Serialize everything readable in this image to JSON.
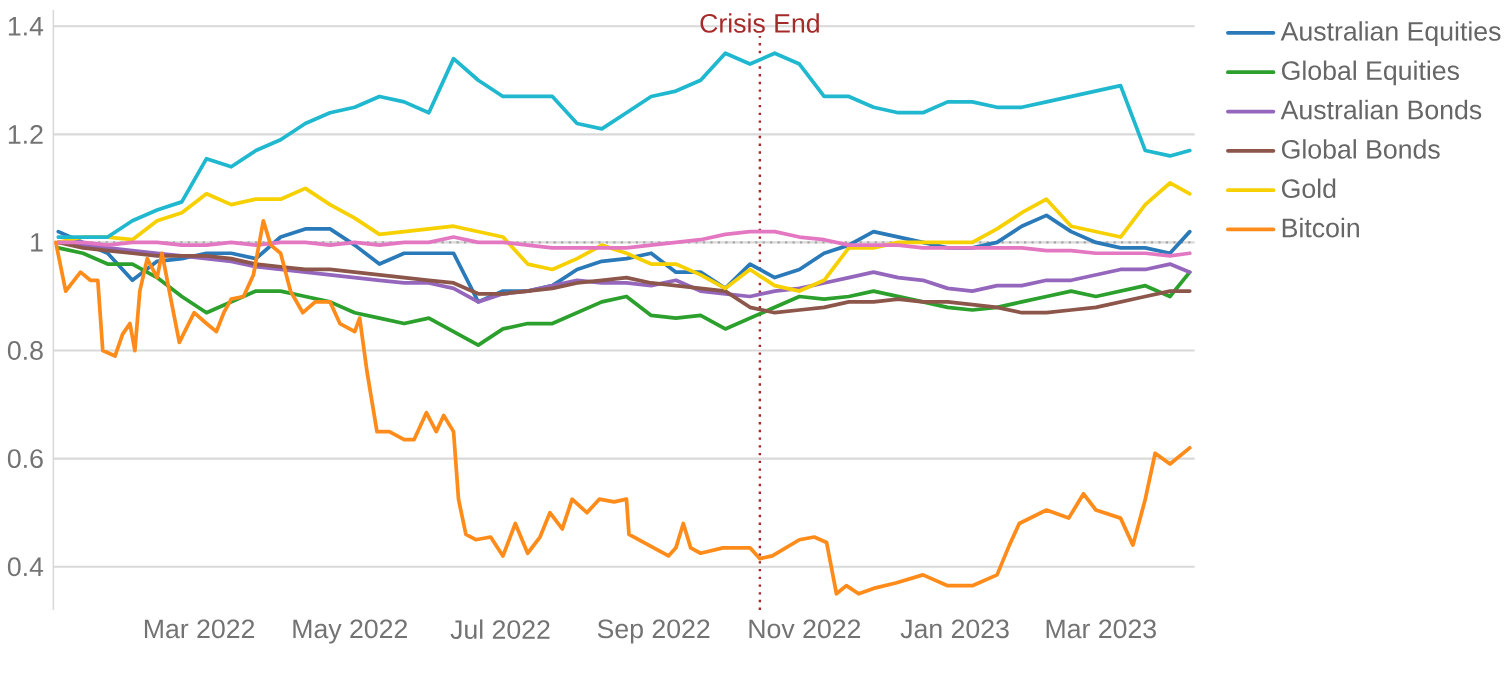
{
  "chart_data": {
    "type": "line",
    "x": [
      "2022-01-03",
      "2022-01-13",
      "2022-01-23",
      "2022-02-02",
      "2022-02-12",
      "2022-02-22",
      "2022-03-04",
      "2022-03-14",
      "2022-03-24",
      "2022-04-03",
      "2022-04-13",
      "2022-04-23",
      "2022-05-03",
      "2022-05-13",
      "2022-05-23",
      "2022-06-02",
      "2022-06-12",
      "2022-06-22",
      "2022-07-02",
      "2022-07-12",
      "2022-07-22",
      "2022-08-01",
      "2022-08-11",
      "2022-08-21",
      "2022-08-31",
      "2022-09-10",
      "2022-09-20",
      "2022-09-30",
      "2022-10-10",
      "2022-10-20",
      "2022-10-30",
      "2022-11-09",
      "2022-11-19",
      "2022-11-29",
      "2022-12-09",
      "2022-12-19",
      "2022-12-29",
      "2023-01-08",
      "2023-01-18",
      "2023-01-28",
      "2023-02-07",
      "2023-02-17",
      "2023-02-27",
      "2023-03-09",
      "2023-03-19",
      "2023-03-29",
      "2023-04-06"
    ],
    "series": [
      {
        "name": "Australian Equities",
        "color": "#2a7ab9",
        "values": [
          1.02,
          1.0,
          0.98,
          0.93,
          0.965,
          0.97,
          0.98,
          0.98,
          0.97,
          1.01,
          1.025,
          1.025,
          0.995,
          0.96,
          0.98,
          0.98,
          0.98,
          0.89,
          0.91,
          0.91,
          0.92,
          0.95,
          0.965,
          0.97,
          0.98,
          0.945,
          0.945,
          0.915,
          0.96,
          0.935,
          0.95,
          0.98,
          0.995,
          1.02,
          1.01,
          1.0,
          0.99,
          0.99,
          1.0,
          1.03,
          1.05,
          1.02,
          1.0,
          0.99,
          0.99,
          0.98,
          1.02
        ]
      },
      {
        "name": "Global Equities",
        "color": "#2ca02c",
        "values": [
          0.99,
          0.98,
          0.96,
          0.96,
          0.935,
          0.9,
          0.87,
          0.89,
          0.91,
          0.91,
          0.9,
          0.89,
          0.87,
          0.86,
          0.85,
          0.86,
          0.835,
          0.81,
          0.84,
          0.85,
          0.85,
          0.87,
          0.89,
          0.9,
          0.865,
          0.86,
          0.865,
          0.84,
          0.86,
          0.88,
          0.9,
          0.895,
          0.9,
          0.91,
          0.9,
          0.89,
          0.88,
          0.875,
          0.88,
          0.89,
          0.9,
          0.91,
          0.9,
          0.91,
          0.92,
          0.9,
          0.945
        ]
      },
      {
        "name": "Australian Bonds",
        "color": "#9467bd",
        "values": [
          1.0,
          0.995,
          0.99,
          0.985,
          0.98,
          0.975,
          0.97,
          0.965,
          0.955,
          0.95,
          0.945,
          0.94,
          0.935,
          0.93,
          0.925,
          0.925,
          0.915,
          0.89,
          0.905,
          0.91,
          0.92,
          0.93,
          0.925,
          0.925,
          0.92,
          0.93,
          0.91,
          0.905,
          0.9,
          0.91,
          0.915,
          0.925,
          0.935,
          0.945,
          0.935,
          0.93,
          0.915,
          0.91,
          0.92,
          0.92,
          0.93,
          0.93,
          0.94,
          0.95,
          0.95,
          0.96,
          0.945
        ]
      },
      {
        "name": "Global Bonds",
        "color": "#8c564b",
        "values": [
          1.0,
          0.99,
          0.985,
          0.98,
          0.975,
          0.975,
          0.975,
          0.97,
          0.96,
          0.955,
          0.95,
          0.95,
          0.945,
          0.94,
          0.935,
          0.93,
          0.925,
          0.905,
          0.905,
          0.91,
          0.915,
          0.925,
          0.93,
          0.935,
          0.925,
          0.92,
          0.915,
          0.91,
          0.88,
          0.87,
          0.875,
          0.88,
          0.89,
          0.89,
          0.895,
          0.89,
          0.89,
          0.885,
          0.88,
          0.87,
          0.87,
          0.875,
          0.88,
          0.89,
          0.9,
          0.91,
          0.91
        ]
      },
      {
        "name": "Gold",
        "color": "#f7d000",
        "values": [
          1.0,
          1.01,
          1.01,
          1.005,
          1.04,
          1.055,
          1.09,
          1.07,
          1.08,
          1.08,
          1.1,
          1.07,
          1.045,
          1.015,
          1.02,
          1.025,
          1.03,
          1.02,
          1.01,
          0.96,
          0.95,
          0.97,
          0.995,
          0.98,
          0.96,
          0.96,
          0.94,
          0.915,
          0.95,
          0.92,
          0.91,
          0.93,
          0.99,
          0.99,
          1.0,
          1.0,
          1.0,
          1.0,
          1.025,
          1.055,
          1.08,
          1.03,
          1.02,
          1.01,
          1.07,
          1.11,
          1.09
        ]
      },
      {
        "color": "#1fb8cf",
        "values": [
          1.01,
          1.01,
          1.01,
          1.04,
          1.06,
          1.075,
          1.155,
          1.14,
          1.17,
          1.19,
          1.22,
          1.24,
          1.25,
          1.27,
          1.26,
          1.24,
          1.34,
          1.3,
          1.27,
          1.27,
          1.27,
          1.22,
          1.21,
          1.24,
          1.27,
          1.28,
          1.3,
          1.35,
          1.33,
          1.35,
          1.33,
          1.27,
          1.27,
          1.25,
          1.24,
          1.24,
          1.26,
          1.26,
          1.25,
          1.25,
          1.26,
          1.27,
          1.28,
          1.29,
          1.17,
          1.16,
          1.17
        ]
      },
      {
        "color": "#e377c2",
        "values": [
          1.0,
          1.0,
          0.995,
          1.0,
          1.0,
          0.995,
          0.995,
          1.0,
          0.995,
          1.0,
          1.0,
          0.995,
          1.0,
          0.995,
          1.0,
          1.0,
          1.01,
          1.0,
          1.0,
          0.995,
          0.99,
          0.99,
          0.99,
          0.99,
          0.995,
          1.0,
          1.005,
          1.015,
          1.02,
          1.02,
          1.01,
          1.005,
          0.995,
          0.995,
          0.995,
          0.99,
          0.99,
          0.99,
          0.99,
          0.99,
          0.985,
          0.985,
          0.98,
          0.98,
          0.98,
          0.975,
          0.98
        ]
      },
      {
        "name": "Bitcoin",
        "color": "#ff8c1a",
        "x": [
          "2022-01-02",
          "2022-01-06",
          "2022-01-12",
          "2022-01-16",
          "2022-01-19",
          "2022-01-21",
          "2022-01-26",
          "2022-01-29",
          "2022-02-01",
          "2022-02-03",
          "2022-02-05",
          "2022-02-08",
          "2022-02-12",
          "2022-02-14",
          "2022-02-18",
          "2022-02-21",
          "2022-02-27",
          "2022-03-04",
          "2022-03-08",
          "2022-03-11",
          "2022-03-14",
          "2022-03-19",
          "2022-03-23",
          "2022-03-27",
          "2022-03-30",
          "2022-04-03",
          "2022-04-07",
          "2022-04-12",
          "2022-04-17",
          "2022-04-23",
          "2022-04-27",
          "2022-05-03",
          "2022-05-05",
          "2022-05-08",
          "2022-05-12",
          "2022-05-17",
          "2022-05-23",
          "2022-05-27",
          "2022-06-01",
          "2022-06-05",
          "2022-06-08",
          "2022-06-12",
          "2022-06-14",
          "2022-06-17",
          "2022-06-21",
          "2022-06-27",
          "2022-07-02",
          "2022-07-07",
          "2022-07-12",
          "2022-07-17",
          "2022-07-21",
          "2022-07-26",
          "2022-07-30",
          "2022-08-05",
          "2022-08-10",
          "2022-08-16",
          "2022-08-21",
          "2022-08-22",
          "2022-08-30",
          "2022-09-07",
          "2022-09-10",
          "2022-09-13",
          "2022-09-16",
          "2022-09-20",
          "2022-09-29",
          "2022-10-10",
          "2022-10-14",
          "2022-10-19",
          "2022-10-30",
          "2022-11-05",
          "2022-11-10",
          "2022-11-14",
          "2022-11-18",
          "2022-11-23",
          "2022-11-29",
          "2022-12-08",
          "2022-12-19",
          "2022-12-29",
          "2023-01-08",
          "2023-01-18",
          "2023-01-23",
          "2023-01-27",
          "2023-02-07",
          "2023-02-16",
          "2023-02-22",
          "2023-02-27",
          "2023-03-09",
          "2023-03-14",
          "2023-03-19",
          "2023-03-23",
          "2023-03-29",
          "2023-04-06"
        ],
        "values": [
          1.0,
          0.91,
          0.945,
          0.93,
          0.93,
          0.8,
          0.79,
          0.83,
          0.85,
          0.8,
          0.91,
          0.97,
          0.935,
          0.98,
          0.885,
          0.815,
          0.87,
          0.85,
          0.835,
          0.87,
          0.895,
          0.9,
          0.94,
          1.04,
          0.995,
          0.98,
          0.91,
          0.87,
          0.89,
          0.89,
          0.85,
          0.835,
          0.86,
          0.76,
          0.65,
          0.65,
          0.635,
          0.635,
          0.685,
          0.65,
          0.68,
          0.65,
          0.525,
          0.46,
          0.45,
          0.455,
          0.42,
          0.48,
          0.425,
          0.455,
          0.5,
          0.47,
          0.525,
          0.5,
          0.525,
          0.52,
          0.525,
          0.46,
          0.44,
          0.42,
          0.435,
          0.48,
          0.435,
          0.425,
          0.435,
          0.435,
          0.415,
          0.42,
          0.45,
          0.455,
          0.445,
          0.35,
          0.365,
          0.35,
          0.36,
          0.37,
          0.385,
          0.365,
          0.365,
          0.385,
          0.44,
          0.48,
          0.505,
          0.49,
          0.535,
          0.505,
          0.49,
          0.44,
          0.525,
          0.61,
          0.59,
          0.62
        ]
      }
    ],
    "xlim": [
      "2022-01-01",
      "2023-04-08"
    ],
    "xticks": [
      {
        "value": "2022-03-01",
        "label": "Mar 2022"
      },
      {
        "value": "2022-05-01",
        "label": "May 2022"
      },
      {
        "value": "2022-07-01",
        "label": "Jul 2022"
      },
      {
        "value": "2022-09-01",
        "label": "Sep 2022"
      },
      {
        "value": "2022-11-01",
        "label": "Nov 2022"
      },
      {
        "value": "2023-01-01",
        "label": "Jan 2023"
      },
      {
        "value": "2023-03-01",
        "label": "Mar 2023"
      }
    ],
    "ylim": [
      0.32,
      1.43
    ],
    "yticks": [
      0.4,
      0.6,
      0.8,
      1,
      1.2,
      1.4
    ],
    "grid": "y",
    "legend": "right",
    "ref_lines": [
      {
        "axis": "y",
        "value": 1,
        "color": "#a6a6a6",
        "line_style": "dotted"
      },
      {
        "axis": "x",
        "value": "2022-10-14",
        "label": "Crisis End",
        "color": "#a52a2a",
        "line_style": "dotted"
      }
    ]
  }
}
